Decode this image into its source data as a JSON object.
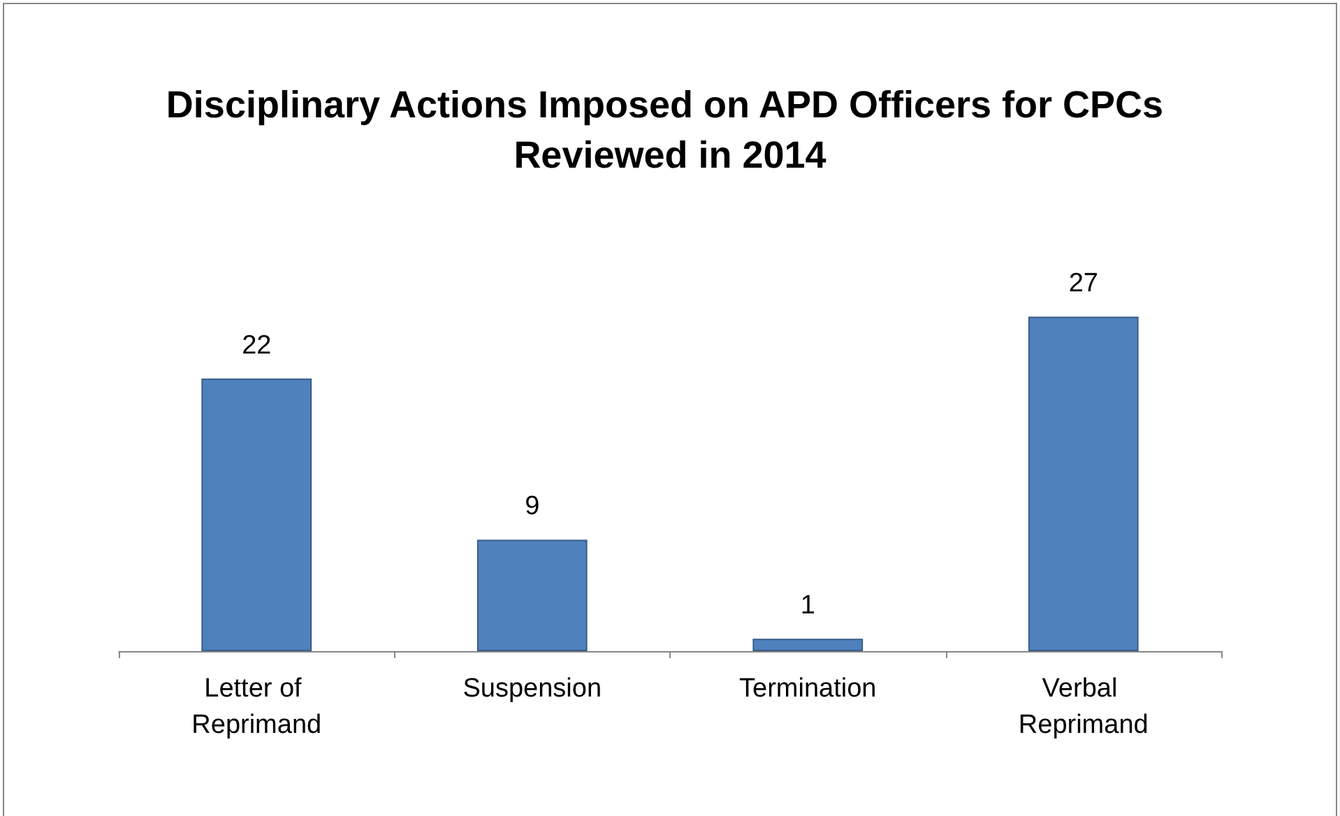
{
  "chart_data": {
    "type": "bar",
    "title": "Disciplinary Actions Imposed on APD Officers for CPCs Reviewed in 2014",
    "categories": [
      "Letter of Reprimand",
      "Suspension",
      "Termination",
      "Verbal Reprimand"
    ],
    "values": [
      22,
      9,
      1,
      27
    ],
    "color": "#4f81bd",
    "data_labels": true,
    "grid": false
  }
}
